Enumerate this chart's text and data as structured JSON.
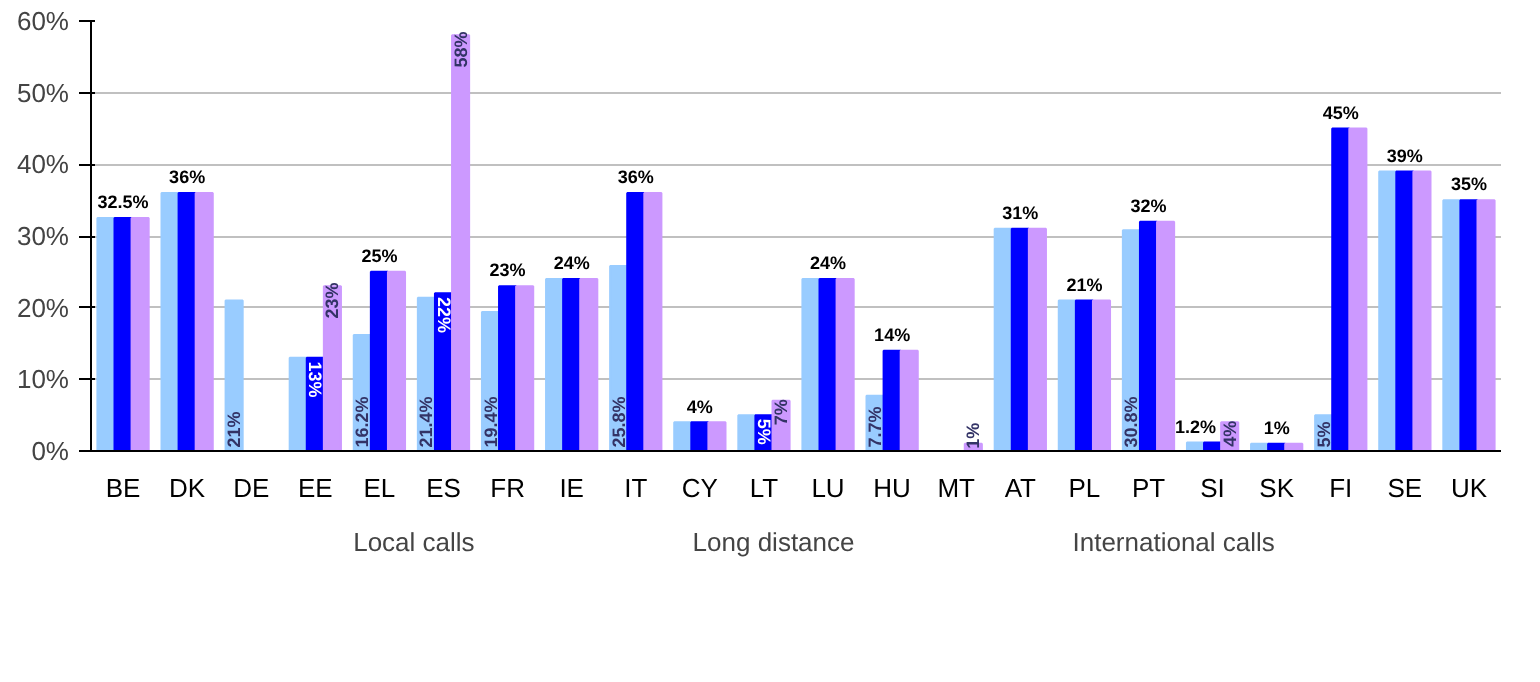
{
  "chart_data": {
    "type": "bar",
    "categories": [
      "BE",
      "DK",
      "DE",
      "EE",
      "EL",
      "ES",
      "FR",
      "IE",
      "IT",
      "CY",
      "LT",
      "LU",
      "HU",
      "MT",
      "AT",
      "PL",
      "PT",
      "SI",
      "SK",
      "FI",
      "SE",
      "UK"
    ],
    "series": [
      {
        "name": "Local calls",
        "color": "#99ccff",
        "values": [
          32.5,
          36,
          21,
          13,
          16.2,
          21.4,
          19.4,
          24,
          25.8,
          4,
          5,
          24,
          7.7,
          null,
          31,
          21,
          30.8,
          1.2,
          1,
          5,
          39,
          35
        ],
        "value_labels": [
          null,
          null,
          "21%",
          null,
          "16.2%",
          "21.4%",
          "19.4%",
          null,
          "25.8%",
          null,
          null,
          null,
          "7.7%",
          null,
          null,
          null,
          "30.8%",
          null,
          null,
          "5%",
          null,
          null
        ]
      },
      {
        "name": "Long distance",
        "color": "#0000ff",
        "values": [
          32.5,
          36,
          null,
          13,
          25,
          22,
          23,
          24,
          36,
          4,
          5,
          24,
          14,
          null,
          31,
          21,
          32,
          1.2,
          1,
          45,
          39,
          35
        ],
        "value_labels": [
          "32.5%",
          "36%",
          null,
          "13%",
          "25%",
          "22%",
          "23%",
          "24%",
          "36%",
          "4%",
          "5%",
          "24%",
          "14%",
          null,
          "31%",
          "21%",
          "32%",
          "1.2%",
          "1%",
          "45%",
          "39%",
          "35%"
        ]
      },
      {
        "name": "International calls",
        "color": "#cc99ff",
        "values": [
          32.5,
          36,
          null,
          23,
          25,
          58,
          23,
          24,
          36,
          4,
          7,
          24,
          14,
          1,
          31,
          21,
          32,
          4,
          1,
          45,
          39,
          35
        ],
        "value_labels": [
          null,
          null,
          null,
          "23%",
          null,
          "58%",
          null,
          null,
          null,
          null,
          "7%",
          null,
          null,
          "1%",
          null,
          null,
          null,
          "4%",
          null,
          null,
          null,
          null
        ]
      }
    ],
    "ylim": [
      0,
      60
    ],
    "yticks": [
      {
        "value": 0,
        "label": "0%"
      },
      {
        "value": 10,
        "label": "10%"
      },
      {
        "value": 20,
        "label": "20%"
      },
      {
        "value": 30,
        "label": "30%"
      },
      {
        "value": 40,
        "label": "40%"
      },
      {
        "value": 50,
        "label": "50%"
      },
      {
        "value": 60,
        "label": "60%"
      }
    ],
    "grid": "y",
    "legend": "bottom"
  }
}
